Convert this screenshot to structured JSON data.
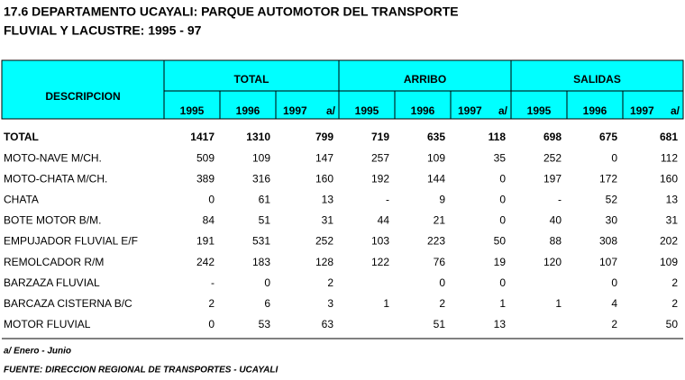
{
  "header": {
    "title_line1": "17.6  DEPARTAMENTO UCAYALI: PARQUE AUTOMOTOR DEL TRANSPORTE",
    "title_line2": "FLUVIAL Y LACUSTRE: 1995 - 97"
  },
  "table": {
    "description_header": "DESCRIPCION",
    "groups": [
      "TOTAL",
      "ARRIBO",
      "SALIDAS"
    ],
    "years": [
      {
        "year": "1995"
      },
      {
        "year": "1996"
      },
      {
        "year": "1997",
        "note": "a/"
      }
    ],
    "rows": [
      {
        "label": "TOTAL",
        "values": [
          1417,
          1310,
          799,
          719,
          635,
          118,
          698,
          675,
          681
        ]
      },
      {
        "label": "MOTO-NAVE M/CH.",
        "values": [
          509,
          109,
          147,
          257,
          109,
          35,
          252,
          0,
          112
        ]
      },
      {
        "label": "MOTO-CHATA M/CH.",
        "values": [
          389,
          316,
          160,
          192,
          144,
          0,
          197,
          172,
          160
        ]
      },
      {
        "label": "CHATA",
        "values": [
          0,
          61,
          13,
          "-",
          9,
          0,
          "-",
          52,
          13
        ]
      },
      {
        "label": "BOTE MOTOR B/M.",
        "values": [
          84,
          51,
          31,
          44,
          21,
          0,
          40,
          30,
          31
        ]
      },
      {
        "label": "EMPUJADOR FLUVIAL E/F",
        "values": [
          191,
          531,
          252,
          103,
          223,
          50,
          88,
          308,
          202
        ]
      },
      {
        "label": "REMOLCADOR R/M",
        "values": [
          242,
          183,
          128,
          122,
          76,
          19,
          120,
          107,
          109
        ]
      },
      {
        "label": "BARZAZA FLUVIAL",
        "values": [
          "-",
          0,
          2,
          null,
          0,
          0,
          null,
          0,
          2
        ]
      },
      {
        "label": "BARCAZA CISTERNA B/C",
        "values": [
          2,
          6,
          3,
          1,
          2,
          1,
          1,
          4,
          2
        ]
      },
      {
        "label": "MOTOR FLUVIAL",
        "values": [
          0,
          53,
          63,
          null,
          51,
          13,
          null,
          2,
          50
        ]
      }
    ]
  },
  "footer": {
    "note": "a/ Enero - Junio",
    "source": "FUENTE: DIRECCION REGIONAL DE TRANSPORTES - UCAYALI"
  }
}
